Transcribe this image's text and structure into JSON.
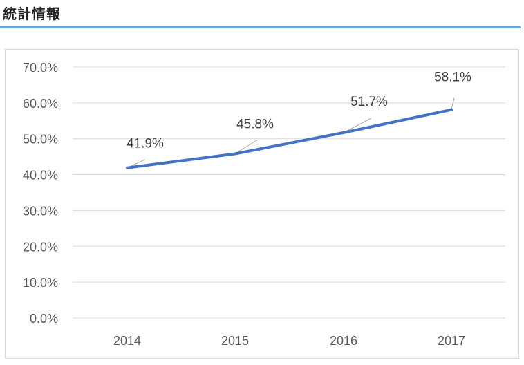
{
  "page": {
    "title": "統計情報"
  },
  "chart_data": {
    "type": "line",
    "title": "",
    "xlabel": "",
    "ylabel": "",
    "x": [
      "2014",
      "2015",
      "2016",
      "2017"
    ],
    "series": [
      {
        "values": [
          41.9,
          45.8,
          51.7,
          58.1
        ],
        "labels": [
          "41.9%",
          "45.8%",
          "51.7%",
          "58.1%"
        ],
        "color": "#4472c4"
      }
    ],
    "y_ticks": [
      "0.0%",
      "10.0%",
      "20.0%",
      "30.0%",
      "40.0%",
      "50.0%",
      "60.0%",
      "70.0%"
    ],
    "ylim": [
      0,
      70
    ],
    "grid": true,
    "legend": "none",
    "colors": {
      "line": "#4472c4",
      "grid": "#d9d9d9",
      "heading_rule": "#6aaad8"
    }
  }
}
